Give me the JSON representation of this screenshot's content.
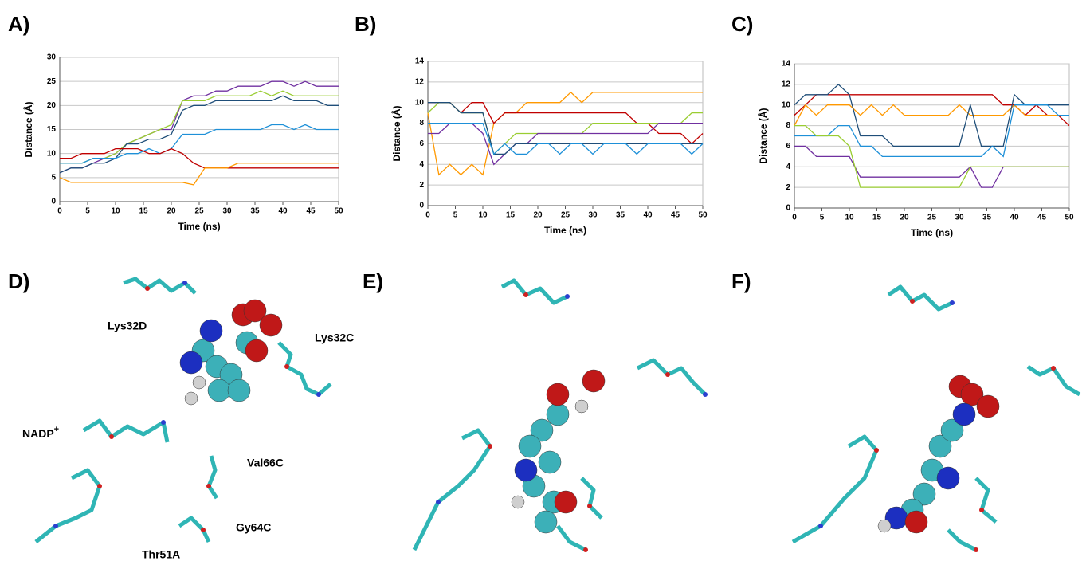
{
  "chart_data": [
    {
      "type": "line",
      "label": "A)",
      "xlabel": "Time (ns)",
      "ylabel": "Distance (Å)",
      "x": [
        0,
        2,
        4,
        6,
        8,
        10,
        12,
        14,
        16,
        18,
        20,
        22,
        24,
        26,
        28,
        30,
        32,
        34,
        36,
        38,
        40,
        42,
        44,
        46,
        48,
        50
      ],
      "xlim": [
        0,
        50
      ],
      "xticks": [
        0,
        5,
        10,
        15,
        20,
        25,
        30,
        35,
        40,
        45,
        50
      ],
      "ylim": [
        0,
        30
      ],
      "yticks": [
        0,
        5,
        10,
        15,
        20,
        25,
        30
      ],
      "grid": true,
      "series": [
        {
          "color": "#7030a0",
          "values": [
            6,
            7,
            7,
            8,
            9,
            10,
            12,
            13,
            14,
            15,
            15,
            21,
            22,
            22,
            23,
            23,
            24,
            24,
            24,
            25,
            25,
            24,
            25,
            24,
            24,
            24
          ]
        },
        {
          "color": "#9acd32",
          "values": [
            8,
            8,
            8,
            9,
            9,
            10,
            12,
            13,
            14,
            15,
            16,
            21,
            21,
            21,
            22,
            22,
            22,
            22,
            23,
            22,
            23,
            22,
            22,
            22,
            22,
            22
          ]
        },
        {
          "color": "#1f4e79",
          "values": [
            6,
            7,
            7,
            8,
            8,
            9,
            12,
            12,
            13,
            13,
            14,
            19,
            20,
            20,
            21,
            21,
            21,
            21,
            21,
            21,
            22,
            21,
            21,
            21,
            20,
            20
          ]
        },
        {
          "color": "#1e90d8",
          "values": [
            8,
            8,
            8,
            9,
            9,
            9,
            10,
            10,
            11,
            10,
            11,
            14,
            14,
            14,
            15,
            15,
            15,
            15,
            15,
            16,
            16,
            15,
            16,
            15,
            15,
            15
          ]
        },
        {
          "color": "#c00000",
          "values": [
            9,
            9,
            10,
            10,
            10,
            11,
            11,
            11,
            10,
            10,
            11,
            10,
            8,
            7,
            7,
            7,
            7,
            7,
            7,
            7,
            7,
            7,
            7,
            7,
            7,
            7
          ]
        },
        {
          "color": "#ff9900",
          "values": [
            5,
            4,
            4,
            4,
            4,
            4,
            4,
            4,
            4,
            4,
            4,
            4,
            3.5,
            7,
            7,
            7,
            8,
            8,
            8,
            8,
            8,
            8,
            8,
            8,
            8,
            8
          ]
        }
      ]
    },
    {
      "type": "line",
      "label": "B)",
      "xlabel": "Time (ns)",
      "ylabel": "Distance (Å)",
      "x": [
        0,
        2,
        4,
        6,
        8,
        10,
        12,
        14,
        16,
        18,
        20,
        22,
        24,
        26,
        28,
        30,
        32,
        34,
        36,
        38,
        40,
        42,
        44,
        46,
        48,
        50
      ],
      "xlim": [
        0,
        50
      ],
      "xticks": [
        0,
        5,
        10,
        15,
        20,
        25,
        30,
        35,
        40,
        45,
        50
      ],
      "ylim": [
        0,
        14
      ],
      "yticks": [
        0,
        2,
        4,
        6,
        8,
        10,
        12,
        14
      ],
      "grid": true,
      "series": [
        {
          "color": "#ff9900",
          "values": [
            9,
            3,
            4,
            3,
            4,
            3,
            8,
            9,
            9,
            10,
            10,
            10,
            10,
            11,
            10,
            11,
            11,
            11,
            11,
            11,
            11,
            11,
            11,
            11,
            11,
            11
          ]
        },
        {
          "color": "#c00000",
          "values": [
            10,
            10,
            10,
            9,
            10,
            10,
            8,
            9,
            9,
            9,
            9,
            9,
            9,
            9,
            9,
            9,
            9,
            9,
            9,
            8,
            8,
            7,
            7,
            7,
            6,
            7
          ]
        },
        {
          "color": "#9acd32",
          "values": [
            9,
            10,
            10,
            9,
            9,
            9,
            5,
            6,
            7,
            7,
            7,
            7,
            7,
            7,
            7,
            8,
            8,
            8,
            8,
            8,
            8,
            8,
            8,
            8,
            9,
            9
          ]
        },
        {
          "color": "#7030a0",
          "values": [
            7,
            7,
            8,
            8,
            8,
            7,
            4,
            5,
            6,
            6,
            7,
            7,
            7,
            7,
            7,
            7,
            7,
            7,
            7,
            7,
            7,
            8,
            8,
            8,
            8,
            8
          ]
        },
        {
          "color": "#1f4e79",
          "values": [
            10,
            10,
            10,
            9,
            9,
            9,
            5,
            5,
            6,
            6,
            6,
            6,
            6,
            6,
            6,
            6,
            6,
            6,
            6,
            6,
            6,
            6,
            6,
            6,
            6,
            6
          ]
        },
        {
          "color": "#1e90d8",
          "values": [
            8,
            8,
            8,
            8,
            8,
            8,
            5,
            6,
            5,
            5,
            6,
            6,
            5,
            6,
            6,
            5,
            6,
            6,
            6,
            5,
            6,
            6,
            6,
            6,
            5,
            6
          ]
        }
      ]
    },
    {
      "type": "line",
      "label": "C)",
      "xlabel": "Time (ns)",
      "ylabel": "Distance (Å)",
      "x": [
        0,
        2,
        4,
        6,
        8,
        10,
        12,
        14,
        16,
        18,
        20,
        22,
        24,
        26,
        28,
        30,
        32,
        34,
        36,
        38,
        40,
        42,
        44,
        46,
        48,
        50
      ],
      "xlim": [
        0,
        50
      ],
      "xticks": [
        0,
        5,
        10,
        15,
        20,
        25,
        30,
        35,
        40,
        45,
        50
      ],
      "ylim": [
        0,
        14
      ],
      "yticks": [
        0,
        2,
        4,
        6,
        8,
        10,
        12,
        14
      ],
      "grid": true,
      "series": [
        {
          "color": "#c00000",
          "values": [
            9,
            10,
            11,
            11,
            11,
            11,
            11,
            11,
            11,
            11,
            11,
            11,
            11,
            11,
            11,
            11,
            11,
            11,
            11,
            10,
            10,
            9,
            10,
            9,
            9,
            8
          ]
        },
        {
          "color": "#ff9900",
          "values": [
            8,
            10,
            9,
            10,
            10,
            10,
            9,
            10,
            9,
            10,
            9,
            9,
            9,
            9,
            9,
            10,
            9,
            9,
            9,
            9,
            10,
            9,
            9,
            9,
            9,
            9
          ]
        },
        {
          "color": "#1f4e79",
          "values": [
            10,
            11,
            11,
            11,
            12,
            11,
            7,
            7,
            7,
            6,
            6,
            6,
            6,
            6,
            6,
            6,
            10,
            6,
            6,
            6,
            11,
            10,
            10,
            10,
            10,
            10
          ]
        },
        {
          "color": "#1e90d8",
          "values": [
            7,
            7,
            7,
            7,
            8,
            8,
            6,
            6,
            5,
            5,
            5,
            5,
            5,
            5,
            5,
            5,
            5,
            5,
            6,
            5,
            10,
            10,
            10,
            10,
            9,
            9
          ]
        },
        {
          "color": "#7030a0",
          "values": [
            6,
            6,
            5,
            5,
            5,
            5,
            3,
            3,
            3,
            3,
            3,
            3,
            3,
            3,
            3,
            3,
            4,
            2,
            2,
            4,
            4,
            4,
            4,
            4,
            4,
            4
          ]
        },
        {
          "color": "#9acd32",
          "values": [
            8,
            8,
            7,
            7,
            7,
            6,
            2,
            2,
            2,
            2,
            2,
            2,
            2,
            2,
            2,
            2,
            4,
            4,
            4,
            4,
            4,
            4,
            4,
            4,
            4,
            4
          ]
        }
      ]
    }
  ],
  "panels": [
    {
      "label": "D)",
      "annotations": [
        {
          "text": "Lys32D"
        },
        {
          "text": "Lys32C"
        },
        {
          "text": "NADP",
          "sup": "+"
        },
        {
          "text": "Val66C"
        },
        {
          "text": "Gy64C"
        },
        {
          "text": "Thr51A"
        }
      ]
    },
    {
      "label": "E)"
    },
    {
      "label": "F)"
    }
  ]
}
